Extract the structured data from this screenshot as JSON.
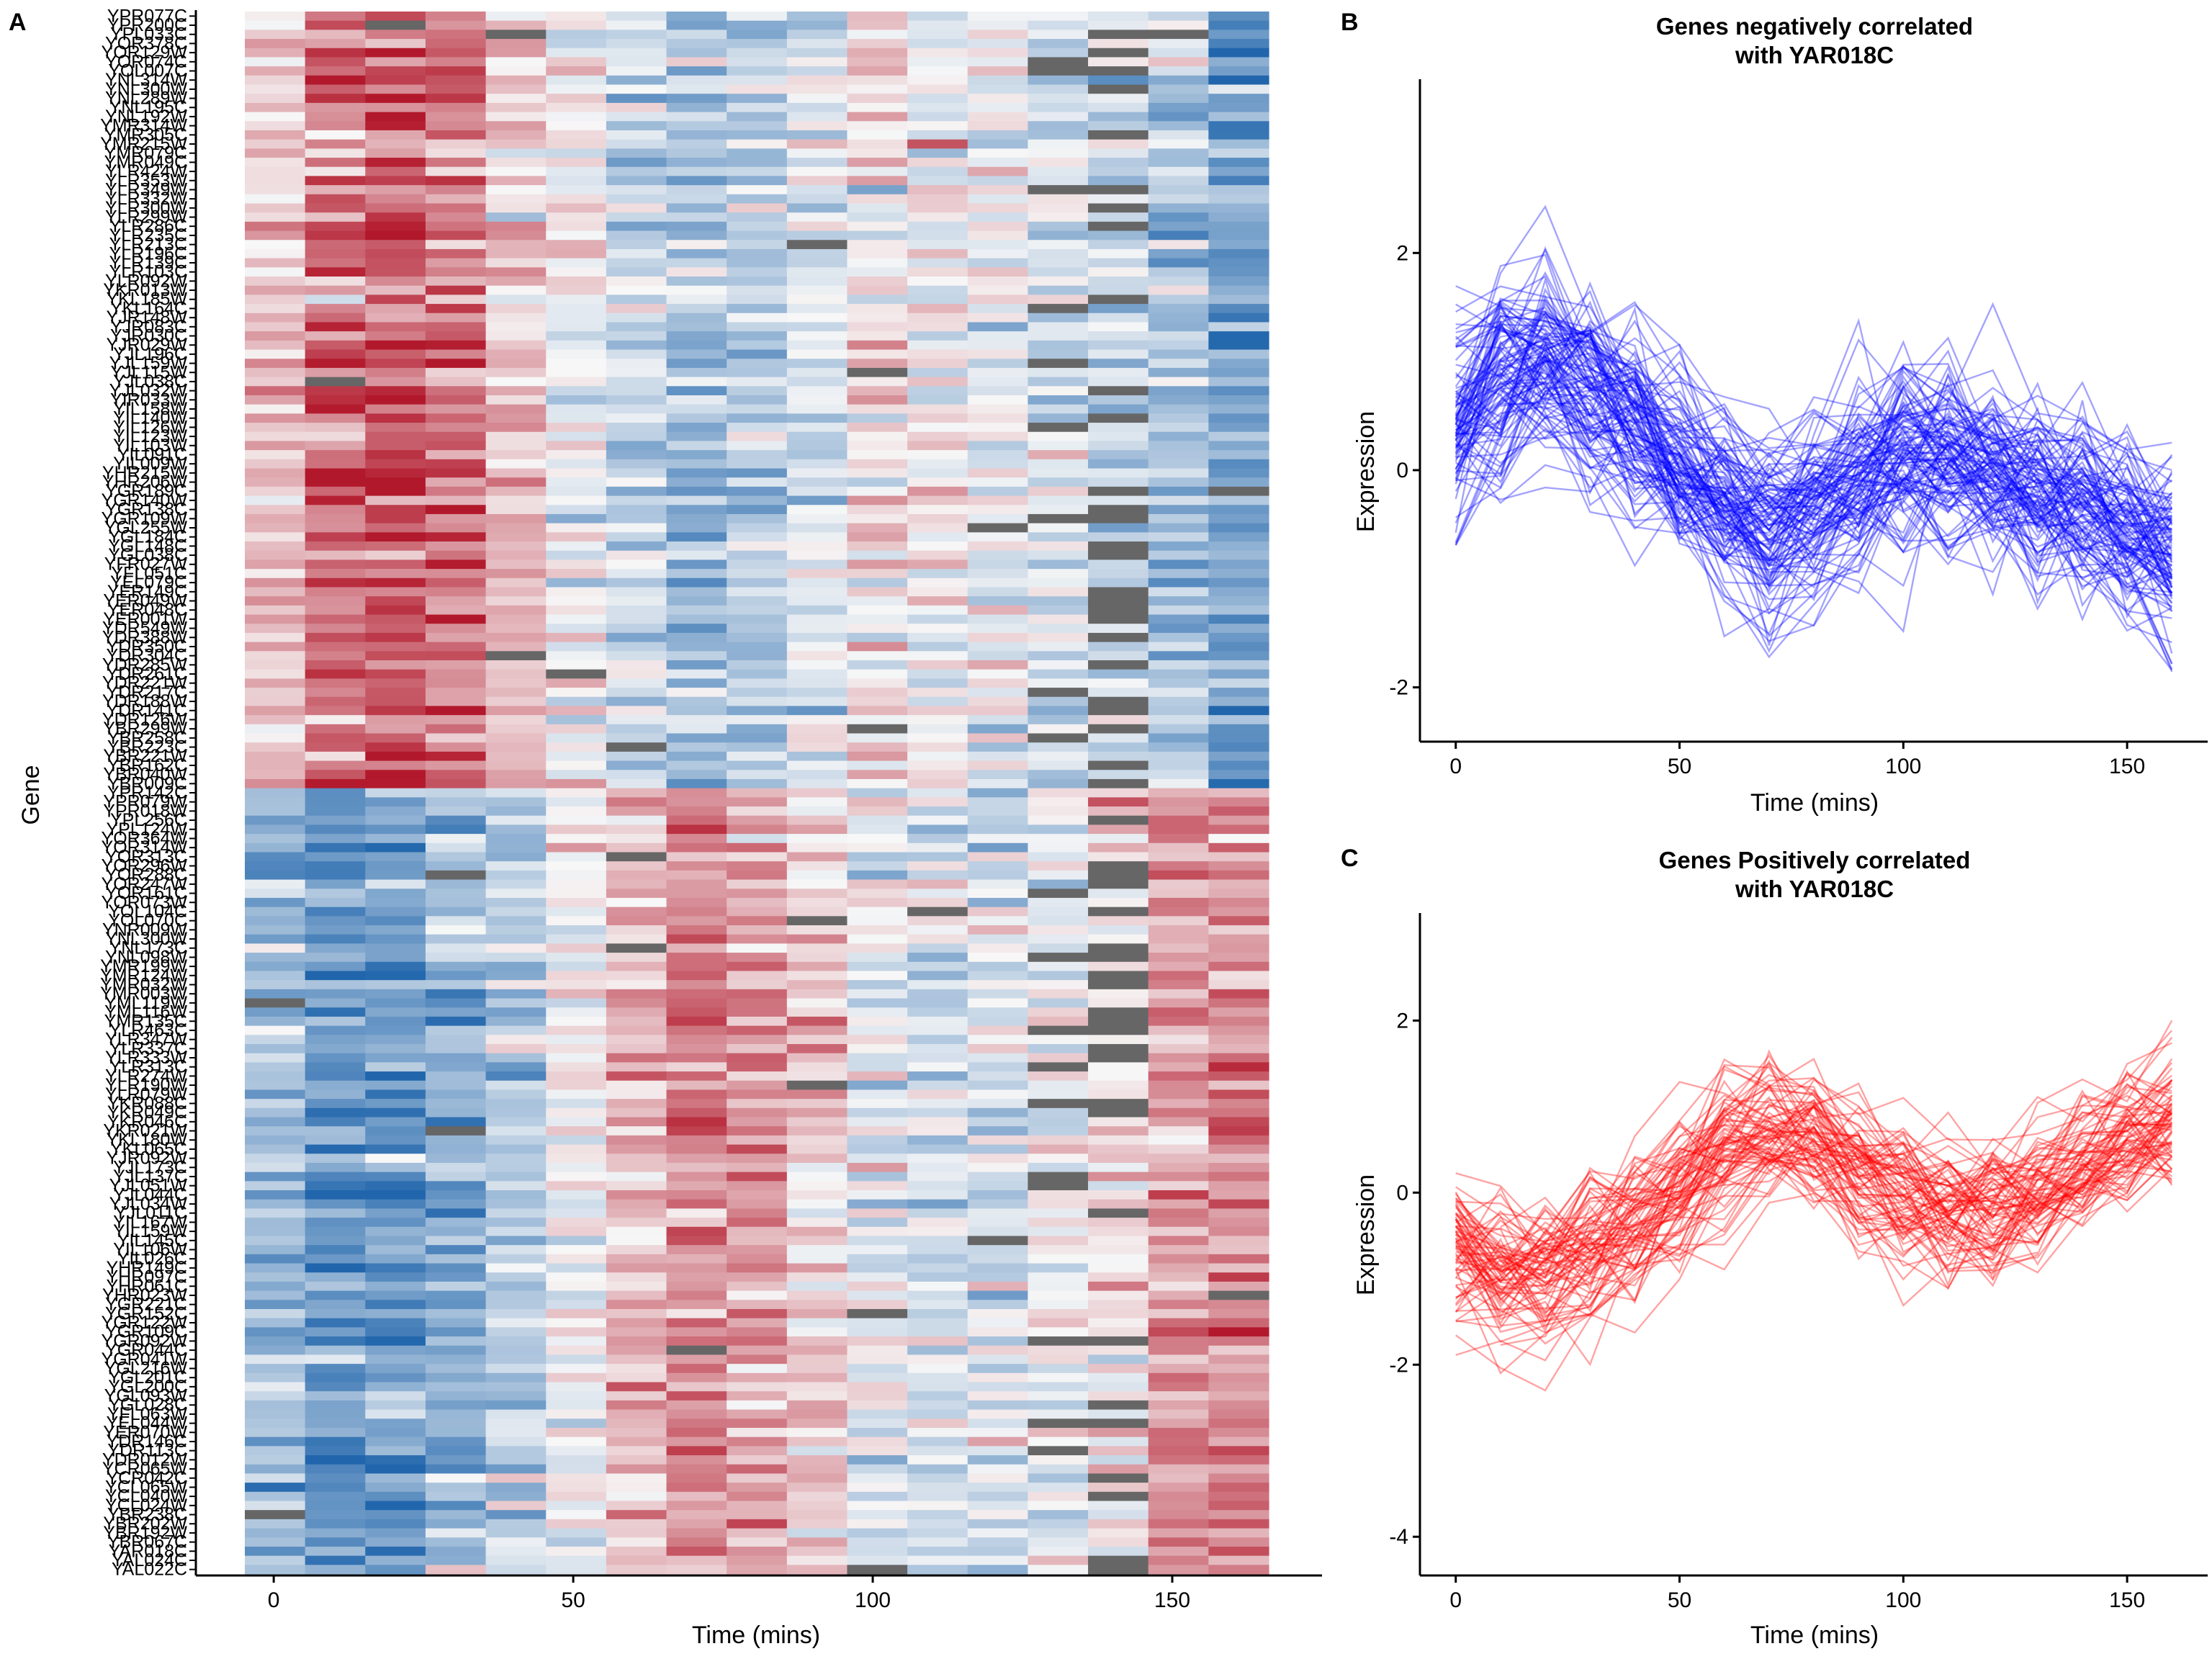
{
  "panels": {
    "A": {
      "letter": "A"
    },
    "B": {
      "letter": "B"
    },
    "C": {
      "letter": "C"
    }
  },
  "chart_data": [
    {
      "type": "heatmap",
      "xlabel": "Time (mins)",
      "ylabel": "Gene",
      "x_ticks": [
        0,
        50,
        100,
        150
      ],
      "xlim": [
        -13,
        175
      ],
      "time_points": [
        0,
        10,
        20,
        30,
        40,
        50,
        60,
        70,
        80,
        90,
        100,
        110,
        120,
        130,
        140,
        150,
        160
      ],
      "color_scale": {
        "low": "#2166ac",
        "mid": "#f7f7f7",
        "high": "#b2182b",
        "missing": "#666666"
      },
      "genes": [
        "YPR077C",
        "YPR200C",
        "YPL033C",
        "YOR378C",
        "YOR129W",
        "YOR074C",
        "YOL007C",
        "YNL314W",
        "YNL300W",
        "YNL289W",
        "YNL195C",
        "YNL192W",
        "YMR314W",
        "YMR305C",
        "YMR215W",
        "YMR079C",
        "YMR049C",
        "YLR424W",
        "YLR353W",
        "YLR349W",
        "YLR332W",
        "YLR300W",
        "YLR299W",
        "YLR286C",
        "YLR235C",
        "YLR213C",
        "YLR196C",
        "YLR139C",
        "YLR103C",
        "YLR092W",
        "YKR013W",
        "YKL185W",
        "YKL164C",
        "YJR148W",
        "YJR083C",
        "YJR030C",
        "YJR029W",
        "YJL196C",
        "YJL159W",
        "YJL115W",
        "YJL038C",
        "YJL032W",
        "YIR033W",
        "YIL158W",
        "YIL140W",
        "YIL126W",
        "YIL123W",
        "YIL103W",
        "YIL091C",
        "YIL009W",
        "YHR215W",
        "YHR206W",
        "YGR189C",
        "YGR140W",
        "YGR138C",
        "YGR109W",
        "YGL255W",
        "YGL184C",
        "YGL148C",
        "YGL038C",
        "YFR027W",
        "YFL051C",
        "YEL079C",
        "YER149C",
        "YER049W",
        "YER048C",
        "YER001W",
        "YDR549W",
        "YDR388W",
        "YDR350C",
        "YDR304C",
        "YDR285W",
        "YDR261C",
        "YDR221W",
        "YDR217C",
        "YDR188W",
        "YDR141C",
        "YDR126W",
        "YBR299W",
        "YBR258C",
        "YBR223C",
        "YBR221W",
        "YBR162C",
        "YBR040W",
        "YBR009C",
        "YPR142C",
        "YPR079W",
        "YPR018W",
        "YPL256C",
        "YPL124W",
        "YOR364W",
        "YOR314W",
        "YOR313C",
        "YOR296W",
        "YOR288C",
        "YOR247W",
        "YOR161C",
        "YOR073W",
        "YOL104C",
        "YOL070C",
        "YNR009W",
        "YNL300W",
        "YNL173C",
        "YNL098W",
        "YMR199W",
        "YMR124W",
        "YMR032W",
        "YMR003W",
        "YML119W",
        "YML116W",
        "YMR135C",
        "YLR463C",
        "YLR347W",
        "YLR337C",
        "YLR333W",
        "YLR313C",
        "YLR274W",
        "YLR190W",
        "YLR079W",
        "YKR088C",
        "YKR049C",
        "YKR046C",
        "YKR021W",
        "YKL180W",
        "YKL065C",
        "YJR092W",
        "YJL173C",
        "YJL137C",
        "YJL051W",
        "YJL044C",
        "YJL034W",
        "YJL011C",
        "YIL167W",
        "YIL159W",
        "YIL145C",
        "YIL106W",
        "YIL026C",
        "YHR149C",
        "YHR097C",
        "YHR061C",
        "YHR023W",
        "YGR221C",
        "YGR152C",
        "YGR122W",
        "YGR109C",
        "YGR092W",
        "YGR044C",
        "YGR041W",
        "YGL216W",
        "YGL201C",
        "YGL200C",
        "YGL093W",
        "YGL028C",
        "YFL063W",
        "YEL044W",
        "YER070W",
        "YDR146C",
        "YDR113C",
        "YDR012W",
        "YCR065W",
        "YCR042C",
        "YCL065W",
        "YCL040W",
        "YCL024W",
        "YBR238C",
        "YBR202W",
        "YBR192W",
        "YBR067C",
        "YAR018C",
        "YAL024C",
        "YAL022C"
      ]
    },
    {
      "type": "line",
      "title": "Genes negatively correlated\nwith YAR018C",
      "xlabel": "Time (mins)",
      "ylabel": "Expression",
      "x_ticks": [
        0,
        50,
        100,
        150
      ],
      "y_ticks": [
        -2,
        0,
        2
      ],
      "xlim": [
        -8,
        168
      ],
      "ylim": [
        -2.5,
        3.6
      ],
      "color": "#0000ff",
      "time_points": [
        0,
        10,
        20,
        30,
        40,
        50,
        60,
        70,
        80,
        90,
        100,
        110,
        120,
        130,
        140,
        150,
        160
      ],
      "mean_profile": [
        0.3,
        0.8,
        1.0,
        0.75,
        0.3,
        0.0,
        -0.3,
        -0.55,
        -0.35,
        -0.2,
        0.1,
        0.05,
        -0.05,
        -0.25,
        -0.3,
        -0.5,
        -0.8
      ],
      "n_series": 110
    },
    {
      "type": "line",
      "title": "Genes Positively correlated\nwith YAR018C",
      "xlabel": "Time (mins)",
      "ylabel": "Expression",
      "x_ticks": [
        0,
        50,
        100,
        150
      ],
      "y_ticks": [
        -4,
        -2,
        0,
        2
      ],
      "xlim": [
        -8,
        168
      ],
      "ylim": [
        -4.45,
        3.25
      ],
      "color": "#ff0000",
      "time_points": [
        0,
        10,
        20,
        30,
        40,
        50,
        60,
        70,
        80,
        90,
        100,
        110,
        120,
        130,
        140,
        150,
        160
      ],
      "mean_profile": [
        -0.6,
        -0.9,
        -0.9,
        -0.65,
        -0.4,
        -0.05,
        0.4,
        0.65,
        0.55,
        0.25,
        -0.1,
        -0.25,
        -0.2,
        -0.05,
        0.2,
        0.55,
        0.7
      ],
      "n_series": 80
    }
  ]
}
